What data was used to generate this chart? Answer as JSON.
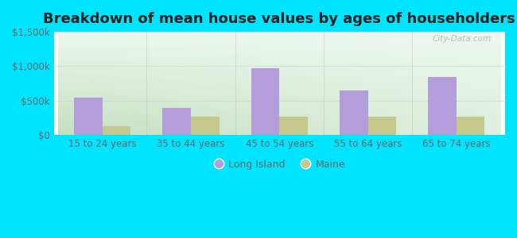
{
  "title": "Breakdown of mean house values by ages of householders",
  "categories": [
    "15 to 24 years",
    "35 to 44 years",
    "45 to 54 years",
    "55 to 64 years",
    "65 to 74 years"
  ],
  "long_island_values": [
    550000,
    400000,
    975000,
    650000,
    840000
  ],
  "maine_values": [
    130000,
    270000,
    270000,
    265000,
    265000
  ],
  "long_island_color": "#b39ddb",
  "maine_color": "#c5c88a",
  "background_outer": "#00e5ff",
  "ylim": [
    0,
    1500000
  ],
  "yticks": [
    0,
    500000,
    1000000,
    1500000
  ],
  "ytick_labels": [
    "$0",
    "$500k",
    "$1,000k",
    "$1,500k"
  ],
  "legend_long_island": "Long Island",
  "legend_maine": "Maine",
  "bar_width": 0.32,
  "title_fontsize": 13,
  "tick_fontsize": 8.5,
  "legend_fontsize": 9,
  "watermark": "City-Data.com",
  "grid_color": "#cccccc",
  "tick_color": "#666666"
}
